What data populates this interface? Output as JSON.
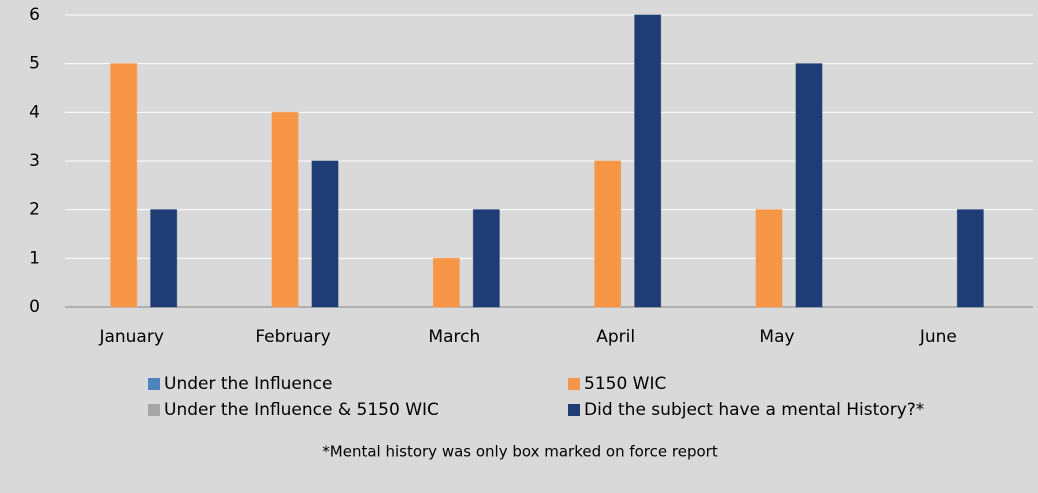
{
  "chart_data": {
    "type": "bar",
    "categories": [
      "January",
      "February",
      "March",
      "April",
      "May",
      "June"
    ],
    "series": [
      {
        "name": "Under the Influence",
        "color": "#4f81bd",
        "values": [
          0,
          0,
          0,
          0,
          0,
          0
        ]
      },
      {
        "name": "5150 WIC",
        "color": "#f79646",
        "values": [
          5,
          4,
          1,
          3,
          2,
          0
        ]
      },
      {
        "name": "Under the Influence & 5150 WIC",
        "color": "#a5a5a5",
        "values": [
          0,
          0,
          0,
          0,
          0,
          0
        ]
      },
      {
        "name": "Did the subject have a mental History?*",
        "color": "#1f3c74",
        "values": [
          2,
          3,
          2,
          6,
          5,
          2
        ]
      }
    ],
    "ylim": [
      0,
      6
    ],
    "yticks": [
      0,
      1,
      2,
      3,
      4,
      5,
      6
    ],
    "grid": true,
    "note": "*Mental history was only box marked on force report"
  }
}
